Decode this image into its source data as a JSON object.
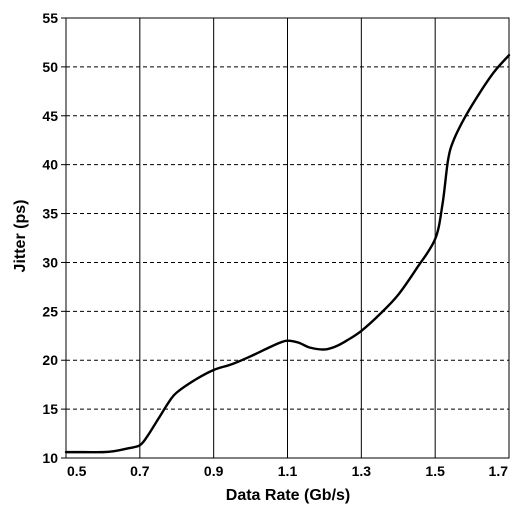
{
  "chart_data": {
    "type": "line",
    "title": "",
    "xlabel": "Data Rate (Gb/s)",
    "ylabel": "Jitter (ps)",
    "xlim": [
      0.5,
      1.7
    ],
    "ylim": [
      10,
      55
    ],
    "x_ticks": [
      "0.5",
      "0.7",
      "0.9",
      "1.1",
      "1.3",
      "1.5",
      "1.7"
    ],
    "y_ticks": [
      "10",
      "15",
      "20",
      "25",
      "30",
      "35",
      "40",
      "45",
      "50",
      "55"
    ],
    "x_tick_values": [
      0.5,
      0.7,
      0.9,
      1.1,
      1.3,
      1.5,
      1.7
    ],
    "y_tick_values": [
      10,
      15,
      20,
      25,
      30,
      35,
      40,
      45,
      50,
      55
    ],
    "grid": {
      "vertical": "solid",
      "horizontal": "dashed"
    },
    "series": [
      {
        "color": "#000000",
        "x": [
          0.5,
          0.55,
          0.6,
          0.63,
          0.67,
          0.7,
          0.72,
          0.75,
          0.78,
          0.8,
          0.85,
          0.9,
          0.95,
          1.0,
          1.05,
          1.08,
          1.1,
          1.13,
          1.16,
          1.2,
          1.23,
          1.26,
          1.3,
          1.35,
          1.4,
          1.45,
          1.5,
          1.52,
          1.535,
          1.55,
          1.58,
          1.62,
          1.66,
          1.7
        ],
        "y": [
          10.6,
          10.6,
          10.6,
          10.7,
          11.0,
          11.3,
          12.2,
          14.0,
          15.8,
          16.7,
          18.0,
          19.0,
          19.6,
          20.4,
          21.3,
          21.8,
          22.0,
          21.8,
          21.3,
          21.1,
          21.4,
          22.0,
          23.0,
          24.7,
          26.7,
          29.4,
          32.4,
          36.0,
          40.5,
          42.5,
          44.8,
          47.3,
          49.5,
          51.2
        ]
      }
    ]
  }
}
